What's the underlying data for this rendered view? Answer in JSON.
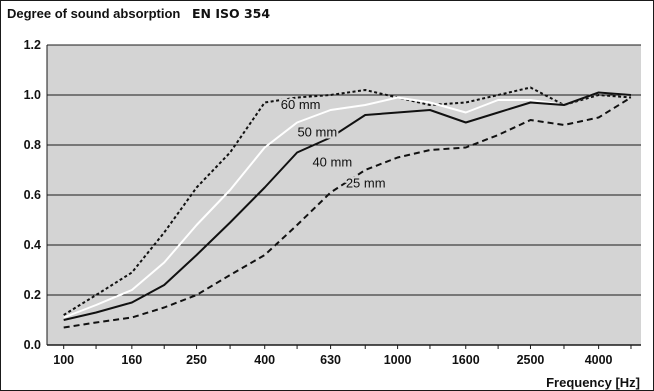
{
  "chart_data": {
    "type": "line",
    "title": "Degree of sound absorption",
    "subtitle": "EN ISO 354",
    "xlabel": "Frequency [Hz]",
    "ylabel": "",
    "x_scale": "log",
    "x": [
      100,
      125,
      160,
      200,
      250,
      315,
      400,
      500,
      630,
      800,
      1000,
      1250,
      1600,
      2000,
      2500,
      3150,
      4000,
      5000
    ],
    "x_ticks": [
      100,
      160,
      250,
      400,
      630,
      1000,
      1600,
      2500,
      4000
    ],
    "x_tick_labels": [
      "100",
      "160",
      "250",
      "400",
      "630",
      "1000",
      "1600",
      "2500",
      "4000"
    ],
    "y_ticks": [
      0.0,
      0.2,
      0.4,
      0.6,
      0.8,
      1.0,
      1.2
    ],
    "y_tick_labels": [
      "0.0",
      "0.2",
      "0.4",
      "0.6",
      "0.8",
      "1.0",
      "1.2"
    ],
    "ylim": [
      0,
      1.2
    ],
    "grid": true,
    "legend": "none",
    "background_color": "#d4d4d4",
    "series": [
      {
        "name": "60 mm",
        "line_style": "dotted",
        "color": "#111111",
        "values": [
          0.12,
          0.2,
          0.29,
          0.45,
          0.63,
          0.77,
          0.97,
          0.99,
          1.0,
          1.02,
          0.99,
          0.96,
          0.97,
          1.0,
          1.03,
          0.96,
          1.0,
          0.99
        ]
      },
      {
        "name": "50 mm",
        "line_style": "solid",
        "color": "#ffffff",
        "values": [
          0.11,
          0.16,
          0.22,
          0.33,
          0.48,
          0.62,
          0.79,
          0.89,
          0.94,
          0.96,
          0.99,
          0.97,
          0.93,
          0.98,
          0.98,
          0.96,
          1.01,
          1.0
        ]
      },
      {
        "name": "40 mm",
        "line_style": "solid",
        "color": "#111111",
        "values": [
          0.1,
          0.13,
          0.17,
          0.24,
          0.36,
          0.49,
          0.63,
          0.77,
          0.83,
          0.92,
          0.93,
          0.94,
          0.89,
          0.93,
          0.97,
          0.96,
          1.01,
          1.0
        ]
      },
      {
        "name": "25 mm",
        "line_style": "dashed",
        "color": "#111111",
        "values": [
          0.07,
          0.09,
          0.11,
          0.15,
          0.2,
          0.28,
          0.36,
          0.48,
          0.61,
          0.7,
          0.75,
          0.78,
          0.79,
          0.84,
          0.9,
          0.88,
          0.91,
          0.99
        ]
      }
    ]
  }
}
